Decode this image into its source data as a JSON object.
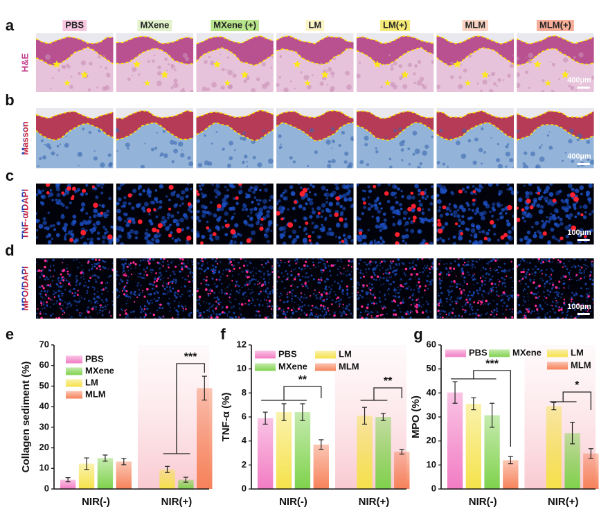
{
  "figure": {
    "column_headers": [
      "PBS",
      "MXene",
      "MXene (+)",
      "LM",
      "LM(+)",
      "MLM",
      "MLM(+)"
    ],
    "rows": [
      {
        "panel": "a",
        "label": "H&E",
        "scale_bar": "400µm"
      },
      {
        "panel": "b",
        "label": "Masson",
        "scale_bar": "400µm"
      },
      {
        "panel": "c",
        "label": "TNF-α/DAPI",
        "scale_bar": "100µm"
      },
      {
        "panel": "d",
        "label": "MPO/DAPI",
        "scale_bar": "100µm"
      }
    ]
  },
  "chart_data": [
    {
      "panel": "e",
      "type": "bar",
      "ylabel": "Collagen sediment (%)",
      "categories": [
        "NIR(-)",
        "NIR(+)"
      ],
      "series": [
        {
          "name": "PBS",
          "color": "#f27cc4",
          "values": [
            4.5,
            null
          ],
          "errors": [
            1,
            null
          ]
        },
        {
          "name": "LM",
          "color": "#f5e24a",
          "values": [
            12.3,
            9.5
          ],
          "errors": [
            2.8,
            1.5
          ]
        },
        {
          "name": "MXene",
          "color": "#7fd24c",
          "values": [
            15,
            4.5
          ],
          "errors": [
            1.5,
            1.2
          ]
        },
        {
          "name": "MLM",
          "color": "#f6825a",
          "values": [
            13.3,
            49
          ],
          "errors": [
            1.5,
            5.8
          ]
        }
      ],
      "ylim": [
        0,
        70
      ],
      "yticks": [
        0,
        10,
        20,
        30,
        40,
        50,
        60,
        70
      ],
      "annotations": [
        "***"
      ]
    },
    {
      "panel": "f",
      "type": "bar",
      "ylabel": "TNF-α (%)",
      "categories": [
        "NIR(-)",
        "NIR(+)"
      ],
      "series": [
        {
          "name": "PBS",
          "color": "#f27cc4",
          "values": [
            5.9,
            null
          ],
          "errors": [
            0.5,
            null
          ]
        },
        {
          "name": "LM",
          "color": "#f5e24a",
          "values": [
            6.4,
            6.1
          ],
          "errors": [
            0.7,
            0.7
          ]
        },
        {
          "name": "MXene",
          "color": "#7fd24c",
          "values": [
            6.4,
            6.0
          ],
          "errors": [
            0.7,
            0.3
          ]
        },
        {
          "name": "MLM",
          "color": "#f6825a",
          "values": [
            3.7,
            3.1
          ],
          "errors": [
            0.4,
            0.2
          ]
        }
      ],
      "ylim": [
        0,
        12
      ],
      "yticks": [
        0,
        2,
        4,
        6,
        8,
        10,
        12
      ],
      "annotations": [
        "**",
        "**"
      ]
    },
    {
      "panel": "g",
      "type": "bar",
      "ylabel": "MPO (%)",
      "categories": [
        "NIR(-)",
        "NIR(+)"
      ],
      "series": [
        {
          "name": "PBS",
          "color": "#f27cc4",
          "values": [
            40.2,
            null
          ],
          "errors": [
            4.5,
            null
          ]
        },
        {
          "name": "LM",
          "color": "#f5e24a",
          "values": [
            35.5,
            34.5
          ],
          "errors": [
            2.5,
            1.5
          ]
        },
        {
          "name": "MXene",
          "color": "#7fd24c",
          "values": [
            30.7,
            23.3
          ],
          "errors": [
            5,
            4.5
          ]
        },
        {
          "name": "MLM",
          "color": "#f6825a",
          "values": [
            12,
            14.8
          ],
          "errors": [
            1.5,
            2
          ]
        }
      ],
      "ylim": [
        0,
        60
      ],
      "yticks": [
        0,
        10,
        20,
        30,
        40,
        50,
        60
      ],
      "annotations": [
        "***",
        "*"
      ]
    }
  ]
}
